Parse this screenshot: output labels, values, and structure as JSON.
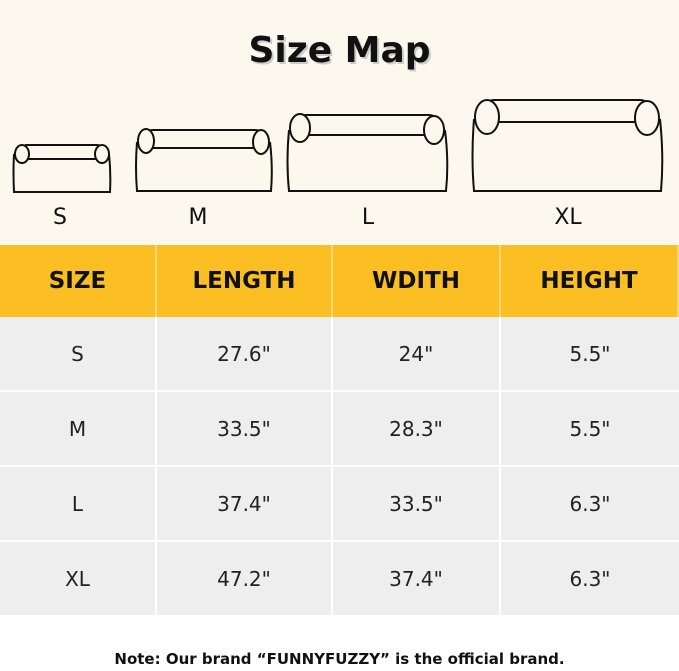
{
  "title": "Size Map",
  "bed_labels": [
    "S",
    "M",
    "L",
    "XL"
  ],
  "table": {
    "headers": [
      "SIZE",
      "LENGTH",
      "WDITH",
      "HEIGHT"
    ],
    "rows": [
      [
        "S",
        "27.6\"",
        "24\"",
        "5.5\""
      ],
      [
        "M",
        "33.5\"",
        "28.3\"",
        "5.5\""
      ],
      [
        "L",
        "37.4\"",
        "33.5\"",
        "6.3\""
      ],
      [
        "XL",
        "47.2\"",
        "37.4\"",
        "6.3\""
      ]
    ]
  },
  "note": "Note: Our brand “FUNNYFUZZY” is the official brand.",
  "colors": {
    "header": "#fbbf23",
    "background": "#fcf8ee",
    "row": "#eeeeee"
  }
}
